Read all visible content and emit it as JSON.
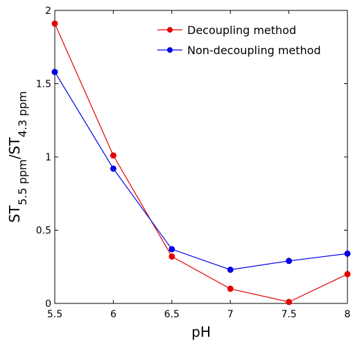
{
  "chart_data": {
    "type": "line",
    "x": [
      5.5,
      6,
      6.5,
      7,
      7.5,
      8
    ],
    "xlabel": "pH",
    "ylabel": {
      "main1": "ST",
      "sub1": "5.5 ppm",
      "slash": "/ST",
      "sub2": "4.3 ppm"
    },
    "xlim": [
      5.5,
      8
    ],
    "ylim": [
      0,
      2
    ],
    "xticks": [
      5.5,
      6,
      6.5,
      7,
      7.5,
      8
    ],
    "xtick_labels": [
      "5.5",
      "6",
      "6.5",
      "7",
      "7.5",
      "8"
    ],
    "yticks": [
      0,
      0.5,
      1,
      1.5,
      2
    ],
    "ytick_labels": [
      "0",
      "0.5",
      "1",
      "1.5",
      "2"
    ],
    "grid": false,
    "legend_position": "top-right",
    "series": [
      {
        "name": "Decoupling method",
        "color": "#e60000",
        "values": [
          1.91,
          1.01,
          0.32,
          0.1,
          0.01,
          0.2
        ]
      },
      {
        "name": "Non-decoupling method",
        "color": "#0000e6",
        "values": [
          1.58,
          0.92,
          0.37,
          0.23,
          0.29,
          0.34
        ]
      }
    ]
  }
}
